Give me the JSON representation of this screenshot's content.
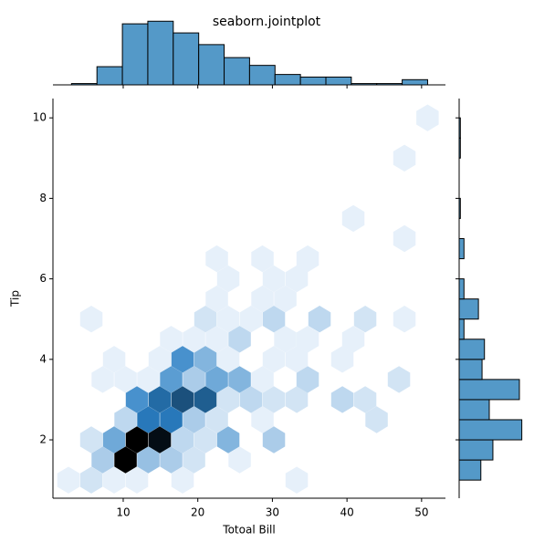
{
  "chart_data": [
    {
      "type": "hexbin",
      "title": "seaborn.jointplot",
      "xlabel": "Totoal Bill",
      "ylabel": "Tip",
      "xlim": [
        0.58,
        53.2
      ],
      "ylim": [
        0.55,
        10.48
      ],
      "xticks": [
        10,
        20,
        30,
        40,
        50
      ],
      "yticks": [
        2,
        4,
        6,
        8,
        10
      ],
      "colors": [
        "#e6f0fa",
        "#2a7fc4",
        "#000000"
      ],
      "x": [
        2.66,
        5.72,
        8.78,
        11.84,
        17.96,
        33.26,
        7.25,
        10.31,
        13.37,
        16.43,
        19.49,
        25.61,
        5.72,
        8.78,
        11.84,
        14.9,
        17.96,
        21.02,
        24.08,
        30.2,
        10.31,
        13.37,
        16.43,
        19.49,
        22.55,
        28.67,
        43.97,
        11.84,
        14.9,
        17.96,
        21.02,
        24.08,
        27.14,
        30.2,
        33.26,
        39.38,
        42.44,
        7.25,
        10.31,
        13.37,
        16.43,
        19.49,
        22.55,
        25.61,
        28.67,
        34.73,
        46.97,
        8.78,
        14.9,
        17.96,
        21.02,
        24.08,
        30.2,
        33.26,
        39.38,
        16.43,
        19.49,
        22.55,
        25.61,
        31.73,
        34.73,
        40.85,
        5.72,
        21.02,
        24.08,
        27.14,
        30.2,
        36.32,
        42.44,
        47.7,
        22.55,
        28.67,
        31.73,
        24.08,
        30.2,
        33.26,
        22.55,
        28.67,
        34.73,
        47.7,
        40.85,
        47.7,
        50.8
      ],
      "y": [
        1,
        1,
        1,
        1,
        1,
        1,
        1.5,
        1.5,
        1.5,
        1.5,
        1.5,
        1.5,
        2,
        2,
        2,
        2,
        2,
        2,
        2,
        2,
        2.5,
        2.5,
        2.5,
        2.5,
        2.5,
        2.5,
        2.5,
        3,
        3,
        3,
        3,
        3,
        3,
        3,
        3,
        3,
        3,
        3.5,
        3.5,
        3.5,
        3.5,
        3.5,
        3.5,
        3.5,
        3.5,
        3.5,
        3.5,
        4,
        4,
        4,
        4,
        4,
        4,
        4,
        4,
        4.5,
        4.5,
        4.5,
        4.5,
        4.5,
        4.5,
        4.5,
        5,
        5,
        5,
        5,
        5,
        5,
        5,
        5,
        5.5,
        5.5,
        5.5,
        6,
        6,
        6,
        6.5,
        6.5,
        6.5,
        7,
        7.5,
        9,
        10
      ],
      "values": [
        1,
        2,
        1,
        1,
        1,
        1,
        4,
        20,
        5,
        4,
        2,
        1,
        2,
        7,
        20,
        19,
        3,
        2,
        6,
        4,
        3,
        11,
        11,
        4,
        2,
        1,
        2,
        9,
        12,
        14,
        13,
        2,
        3,
        2,
        2,
        3,
        2,
        1,
        1,
        1,
        8,
        4,
        7,
        6,
        1,
        3,
        2,
        1,
        1,
        9,
        6,
        1,
        1,
        1,
        1,
        1,
        1,
        1,
        3,
        1,
        1,
        1,
        1,
        2,
        1,
        1,
        3,
        3,
        2,
        1,
        1,
        1,
        1,
        1,
        1,
        1,
        1,
        1,
        1,
        1,
        1,
        1,
        1
      ]
    },
    {
      "type": "histogram",
      "color": "#5499c8",
      "bins": [
        3.07,
        6.48,
        9.89,
        13.3,
        16.71,
        20.12,
        23.53,
        26.94,
        30.35,
        33.76,
        37.17,
        40.58,
        43.99,
        47.4,
        50.81
      ],
      "values": [
        1,
        14,
        47,
        49,
        40,
        31,
        21,
        15,
        8,
        6,
        6,
        1,
        1,
        4
      ],
      "ylim": [
        0,
        52
      ]
    },
    {
      "type": "histogram",
      "orientation": "horizontal",
      "color": "#5499c8",
      "bins": [
        1,
        1.5,
        2,
        2.5,
        3,
        3.5,
        4,
        4.5,
        5,
        5.5,
        6,
        6.5,
        7,
        7.5,
        8,
        8.5,
        9,
        9.5,
        10
      ],
      "values": [
        18,
        28,
        52,
        25,
        50,
        19,
        21,
        4,
        16,
        4,
        0,
        4,
        0,
        1,
        0,
        0,
        1,
        1
      ],
      "xlim": [
        0,
        55
      ]
    }
  ]
}
